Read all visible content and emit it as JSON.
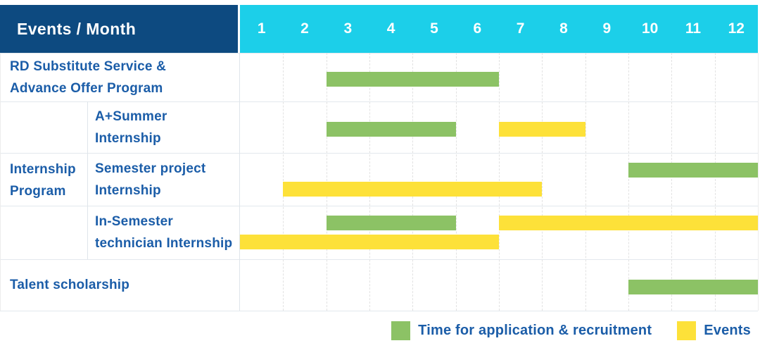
{
  "header": {
    "title": "Events / Month",
    "months": [
      "1",
      "2",
      "3",
      "4",
      "5",
      "6",
      "7",
      "8",
      "9",
      "10",
      "11",
      "12"
    ]
  },
  "labels": {
    "row1": [
      "RD Substitute Service &",
      "Advance Offer Program"
    ],
    "group": [
      "Internship",
      "Program"
    ],
    "row2": [
      "A+Summer",
      "Internship"
    ],
    "row3": [
      "Semester project",
      "Internship"
    ],
    "row4": [
      "In-Semester",
      "technician Internship"
    ],
    "row5": [
      "Talent scholarship"
    ]
  },
  "legend": {
    "application": "Time for application & recruitment",
    "events": "Events"
  },
  "colors": {
    "header_bg": "#0D4A80",
    "months_bg": "#1CCFE9",
    "label_text": "#1B5DA8",
    "bar_green": "#8CC265",
    "bar_yellow": "#FDE139"
  },
  "chart_data": {
    "type": "table",
    "subtype": "gantt",
    "title": "Events / Month",
    "x_categories": [
      "1",
      "2",
      "3",
      "4",
      "5",
      "6",
      "7",
      "8",
      "9",
      "10",
      "11",
      "12"
    ],
    "x_range": [
      1,
      12
    ],
    "grid": true,
    "legend_position": "bottom-right",
    "rows": [
      {
        "label": "RD Substitute Service & Advance Offer Program",
        "group": null,
        "bars": [
          {
            "color": "green",
            "start_month": 3,
            "end_month": 6,
            "line": "center"
          }
        ]
      },
      {
        "label": "A+Summer Internship",
        "group": "Internship Program",
        "bars": [
          {
            "color": "green",
            "start_month": 3,
            "end_month": 5,
            "line": "center"
          },
          {
            "color": "yellow",
            "start_month": 7,
            "end_month": 8,
            "line": "center"
          }
        ]
      },
      {
        "label": "Semester project Internship",
        "group": "Internship Program",
        "bars": [
          {
            "color": "green",
            "start_month": 10,
            "end_month": 12,
            "line": "top"
          },
          {
            "color": "yellow",
            "start_month": 2,
            "end_month": 7,
            "line": "bottom"
          }
        ]
      },
      {
        "label": "In-Semester technician Internship",
        "group": "Internship Program",
        "bars": [
          {
            "color": "green",
            "start_month": 3,
            "end_month": 5,
            "line": "top"
          },
          {
            "color": "yellow",
            "start_month": 7,
            "end_month": 12,
            "line": "top"
          },
          {
            "color": "yellow",
            "start_month": 1,
            "end_month": 6,
            "line": "bottom"
          }
        ]
      },
      {
        "label": "Talent scholarship",
        "group": null,
        "bars": [
          {
            "color": "green",
            "start_month": 10,
            "end_month": 12,
            "line": "center"
          }
        ]
      }
    ],
    "legend": [
      {
        "color": "green",
        "label": "Time for application & recruitment"
      },
      {
        "color": "yellow",
        "label": "Events"
      }
    ]
  }
}
